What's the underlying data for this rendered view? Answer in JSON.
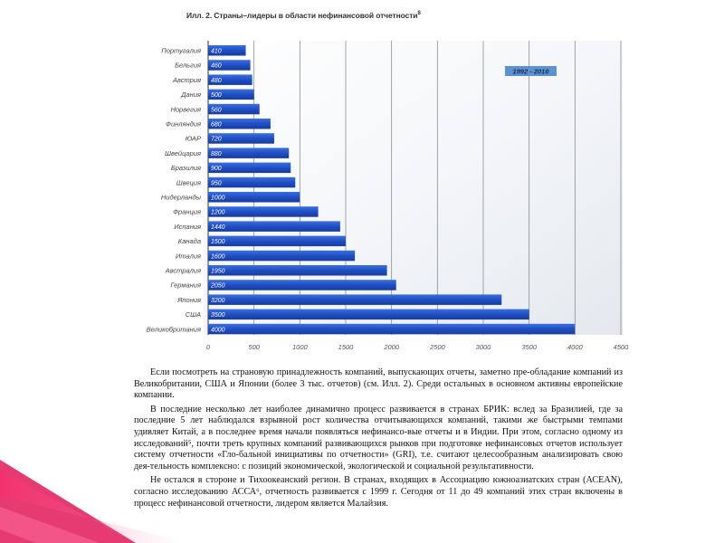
{
  "chart_data": {
    "type": "bar",
    "orientation": "horizontal",
    "title": "Илл. 2. Страны–лидеры в области нефинансовой отчетности",
    "title_note": "8",
    "badge": "1992 - 2010",
    "categories": [
      "Португалия",
      "Бельгия",
      "Австрия",
      "Дания",
      "Норвегия",
      "Финляндия",
      "ЮАР",
      "Швейцария",
      "Бразилия",
      "Швеция",
      "Нидерланды",
      "Франция",
      "Испания",
      "Канада",
      "Италия",
      "Австралия",
      "Германия",
      "Япония",
      "США",
      "Великобритания"
    ],
    "values": [
      410,
      460,
      480,
      500,
      560,
      680,
      720,
      880,
      900,
      950,
      1000,
      1200,
      1440,
      1500,
      1600,
      1950,
      2050,
      3200,
      3500,
      4000
    ],
    "x_ticks": [
      "0",
      "500",
      "1000",
      "1500",
      "2000",
      "2500",
      "3000",
      "3500",
      "4000",
      "4500"
    ],
    "xlim": [
      0,
      4500
    ],
    "grid": "vertical",
    "bar_color": "#1f4fc4"
  },
  "text": {
    "paragraphs": [
      "Если посмотреть на страновую принадлежность компаний, выпускающих отчеты, заметно пре-обладание компаний из Великобритании, США и Японии (более 3 тыс. отчетов) (см. Илл. 2). Среди остальных в основном активны европейские компании.",
      "В последние несколько лет наиболее динамично процесс развивается в странах БРИК: вслед за Бразилией, где за последние 5 лет наблюдался взрывной рост количества отчитывающихся компаний, такими же быстрыми темпами удивляет Китай, а в последнее время начали появляться нефинансо-вые отчеты и в Индии. При этом, согласно одному из исследований⁵, почти треть крупных компаний развивающихся рынков при подготовке нефинансовых отчетов использует систему отчетности «Гло-бальной инициативы по отчетности» (GRI), т.е. считают целесообразным анализировать свою дея-тельность комплексно: с позиций экономической, экологической и социальной результативности.",
      "Не остался в стороне и Тихоокеанский регион. В странах, входящих в Ассоциацию южноазиатских стран (АСЕАN), согласно исследованию АССА⁶, отчетность развивается с 1999 г. Сегодня от 11 до 49 компаний этих стран включены в процесс нефинансовой отчетности, лидером является Малайзия."
    ]
  }
}
